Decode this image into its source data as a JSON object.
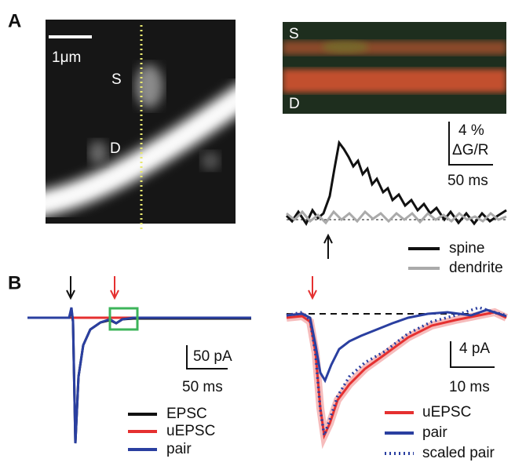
{
  "panel_a": {
    "label": "A",
    "image": {
      "scale_bar": "1μm",
      "spine_label": "S",
      "dendrite_label": "D"
    },
    "linescan": {
      "spine_label": "S",
      "dendrite_label": "D"
    },
    "scale_bar": {
      "y": "4 %",
      "y_unit": "ΔG/R",
      "x": "50 ms"
    },
    "legend": [
      "spine",
      "dendrite"
    ]
  },
  "panel_b": {
    "label": "B",
    "left": {
      "scale_bar": {
        "y": "50 pA",
        "x": "50 ms"
      },
      "legend": [
        "EPSC",
        "uEPSC",
        "pair"
      ]
    },
    "right": {
      "scale_bar": {
        "y": "4 pA",
        "x": "10 ms"
      },
      "legend": [
        "uEPSC",
        "pair",
        "scaled pair"
      ]
    }
  }
}
